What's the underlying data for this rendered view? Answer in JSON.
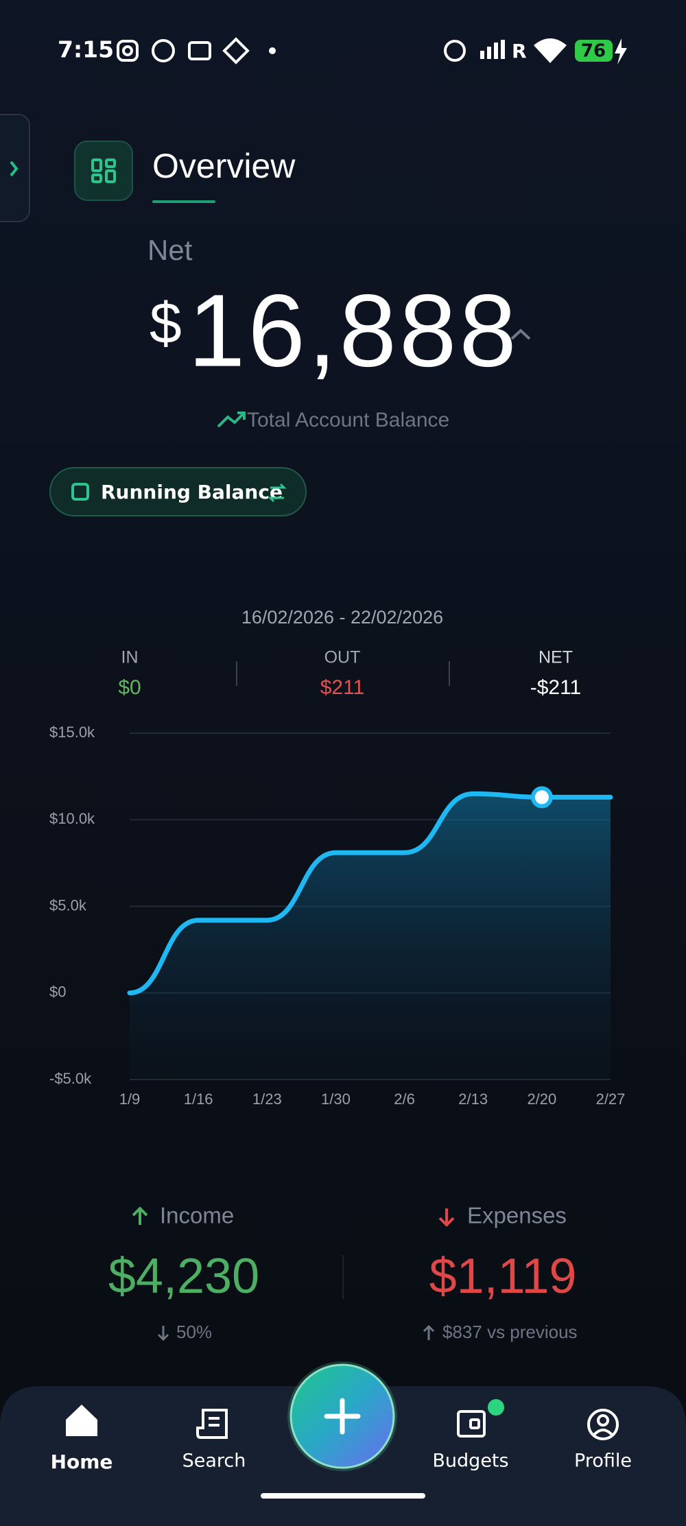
{
  "status_bar": {
    "time": "7:15",
    "signal_label": "R",
    "battery": "76"
  },
  "header": {
    "title": "Overview"
  },
  "net": {
    "label": "Net",
    "currency": "$",
    "amount": "16,888",
    "caption": "Total Account Balance"
  },
  "toggle": {
    "label": "Running Balance"
  },
  "period": {
    "range": "16/02/2026 - 22/02/2026",
    "in_label": "IN",
    "in_value": "$0",
    "out_label": "OUT",
    "out_value": "$211",
    "net_label": "NET",
    "net_value": "-$211"
  },
  "chart_data": {
    "type": "line",
    "categories": [
      "1/9",
      "1/16",
      "1/23",
      "1/30",
      "2/6",
      "2/13",
      "2/20",
      "2/27"
    ],
    "values": [
      0,
      4200,
      4200,
      8100,
      8100,
      11500,
      11300,
      11300
    ],
    "color": "#1fb8f2",
    "marker_index": 6,
    "ylim": [
      -5000,
      15000
    ],
    "yticks": [
      {
        "value": -5000,
        "label": "-$5.0k"
      },
      {
        "value": 0,
        "label": "$0"
      },
      {
        "value": 5000,
        "label": "$5.0k"
      },
      {
        "value": 10000,
        "label": "$10.0k"
      },
      {
        "value": 15000,
        "label": "$15.0k"
      }
    ],
    "grid": true
  },
  "summary": {
    "income_label": "Income",
    "income_value": "$4,230",
    "income_change": "50%",
    "expenses_label": "Expenses",
    "expenses_value": "$1,119",
    "expenses_change": "$837 vs previous"
  },
  "nav": {
    "items": [
      "Home",
      "Search",
      "Budgets",
      "Profile"
    ]
  }
}
